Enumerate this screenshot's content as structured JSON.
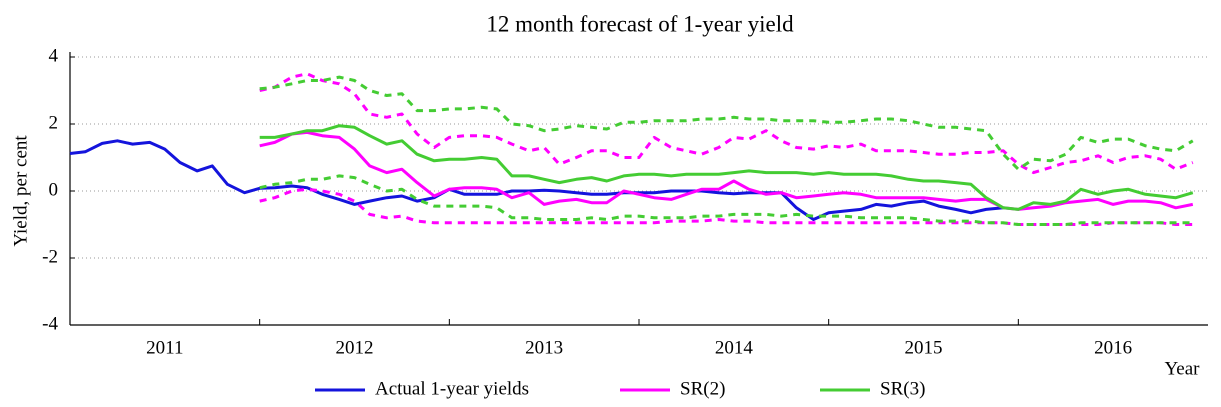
{
  "chart_data": {
    "type": "line",
    "title": "12 month forecast of 1-year yield",
    "y_label": "Yield, per cent",
    "x_label": "Year",
    "xlim": [
      2011,
      2017
    ],
    "xticks": [
      {
        "value": 2011.5,
        "label": "2011"
      },
      {
        "value": 2012.5,
        "label": "2012"
      },
      {
        "value": 2013.5,
        "label": "2013"
      },
      {
        "value": 2014.5,
        "label": "2014"
      },
      {
        "value": 2015.5,
        "label": "2015"
      },
      {
        "value": 2016.5,
        "label": "2016"
      }
    ],
    "xtick_marks": [
      2012,
      2013,
      2014,
      2015,
      2016
    ],
    "ylim": [
      -4,
      4
    ],
    "yticks": [
      -4,
      -2,
      0,
      2,
      4
    ],
    "grid": true,
    "legend": "bottom",
    "x": [
      2011,
      2011.08,
      2011.17,
      2011.25,
      2011.33,
      2011.42,
      2011.5,
      2011.58,
      2011.67,
      2011.75,
      2011.83,
      2011.92,
      2012,
      2012.08,
      2012.17,
      2012.25,
      2012.33,
      2012.42,
      2012.5,
      2012.58,
      2012.67,
      2012.75,
      2012.83,
      2012.92,
      2013,
      2013.08,
      2013.17,
      2013.25,
      2013.33,
      2013.42,
      2013.5,
      2013.58,
      2013.67,
      2013.75,
      2013.83,
      2013.92,
      2014,
      2014.08,
      2014.17,
      2014.25,
      2014.33,
      2014.42,
      2014.5,
      2014.58,
      2014.67,
      2014.75,
      2014.83,
      2014.92,
      2015,
      2015.08,
      2015.17,
      2015.25,
      2015.33,
      2015.42,
      2015.5,
      2015.58,
      2015.67,
      2015.75,
      2015.83,
      2015.92,
      2016,
      2016.08,
      2016.17,
      2016.25,
      2016.33,
      2016.42,
      2016.5,
      2016.58,
      2016.67,
      2016.75,
      2016.83,
      2016.92
    ],
    "series": [
      {
        "name": "Actual 1-year yields",
        "color": "#1414dc",
        "values": [
          1.12,
          1.17,
          1.42,
          1.5,
          1.4,
          1.45,
          1.25,
          0.85,
          0.6,
          0.75,
          0.2,
          -0.05,
          0.08,
          0.1,
          0.15,
          0.1,
          -0.1,
          -0.25,
          -0.4,
          -0.3,
          -0.2,
          -0.15,
          -0.3,
          -0.2,
          0.05,
          -0.1,
          -0.1,
          -0.1,
          0.0,
          0.0,
          0.02,
          0.0,
          -0.05,
          -0.1,
          -0.1,
          -0.05,
          -0.05,
          -0.05,
          0.0,
          0.0,
          0.0,
          -0.05,
          -0.08,
          -0.05,
          -0.05,
          -0.05,
          -0.5,
          -0.85,
          -0.65,
          -0.6,
          -0.55,
          -0.4,
          -0.45,
          -0.35,
          -0.3,
          -0.45,
          -0.55,
          -0.65,
          -0.55,
          -0.5,
          null,
          null,
          null,
          null,
          null,
          null,
          null,
          null,
          null,
          null,
          null,
          null
        ]
      },
      {
        "name": "SR(2)",
        "color": "#ff00ff",
        "values": [
          null,
          null,
          null,
          null,
          null,
          null,
          null,
          null,
          null,
          null,
          null,
          null,
          1.35,
          1.45,
          1.7,
          1.75,
          1.65,
          1.6,
          1.25,
          0.75,
          0.55,
          0.65,
          0.25,
          -0.15,
          0.05,
          0.1,
          0.1,
          0.05,
          -0.2,
          -0.05,
          -0.4,
          -0.3,
          -0.25,
          -0.35,
          -0.35,
          0.0,
          -0.1,
          -0.2,
          -0.25,
          -0.1,
          0.05,
          0.05,
          0.3,
          0.05,
          -0.1,
          -0.05,
          -0.2,
          -0.15,
          -0.1,
          -0.05,
          -0.1,
          -0.2,
          -0.2,
          -0.2,
          -0.2,
          -0.25,
          -0.3,
          -0.25,
          -0.25,
          -0.5,
          -0.55,
          -0.5,
          -0.45,
          -0.35,
          -0.3,
          -0.25,
          -0.4,
          -0.3,
          -0.3,
          -0.35,
          -0.5,
          -0.4
        ],
        "upper": [
          null,
          null,
          null,
          null,
          null,
          null,
          null,
          null,
          null,
          null,
          null,
          null,
          3.0,
          3.1,
          3.4,
          3.5,
          3.3,
          3.2,
          2.9,
          2.3,
          2.2,
          2.3,
          1.7,
          1.3,
          1.6,
          1.65,
          1.65,
          1.6,
          1.4,
          1.2,
          1.3,
          0.8,
          1.0,
          1.2,
          1.2,
          1.0,
          1.0,
          1.6,
          1.3,
          1.2,
          1.1,
          1.3,
          1.6,
          1.55,
          1.8,
          1.5,
          1.3,
          1.25,
          1.35,
          1.3,
          1.4,
          1.2,
          1.2,
          1.2,
          1.15,
          1.1,
          1.1,
          1.15,
          1.15,
          1.2,
          0.8,
          0.55,
          0.7,
          0.85,
          0.9,
          1.05,
          0.85,
          1.0,
          1.05,
          0.95,
          0.65,
          0.85
        ],
        "lower": [
          null,
          null,
          null,
          null,
          null,
          null,
          null,
          null,
          null,
          null,
          null,
          null,
          -0.3,
          -0.2,
          0.0,
          0.05,
          0.0,
          -0.1,
          -0.3,
          -0.7,
          -0.8,
          -0.75,
          -0.9,
          -0.95,
          -0.95,
          -0.95,
          -0.95,
          -0.95,
          -0.95,
          -0.95,
          -0.95,
          -0.95,
          -0.95,
          -0.95,
          -0.95,
          -0.95,
          -0.95,
          -0.95,
          -0.9,
          -0.9,
          -0.9,
          -0.85,
          -0.9,
          -0.9,
          -0.95,
          -0.95,
          -0.95,
          -0.95,
          -0.95,
          -0.95,
          -0.95,
          -0.95,
          -0.95,
          -0.95,
          -0.95,
          -0.95,
          -0.95,
          -0.95,
          -0.95,
          -0.95,
          -1.0,
          -1.0,
          -1.0,
          -1.0,
          -1.0,
          -1.0,
          -0.95,
          -0.95,
          -0.95,
          -0.95,
          -1.0,
          -1.0
        ]
      },
      {
        "name": "SR(3)",
        "color": "#44cc33",
        "values": [
          null,
          null,
          null,
          null,
          null,
          null,
          null,
          null,
          null,
          null,
          null,
          null,
          1.6,
          1.6,
          1.7,
          1.8,
          1.8,
          1.95,
          1.9,
          1.65,
          1.4,
          1.5,
          1.1,
          0.9,
          0.95,
          0.95,
          1.0,
          0.95,
          0.45,
          0.45,
          0.35,
          0.25,
          0.35,
          0.4,
          0.3,
          0.45,
          0.5,
          0.5,
          0.45,
          0.5,
          0.5,
          0.5,
          0.55,
          0.6,
          0.55,
          0.55,
          0.55,
          0.5,
          0.55,
          0.5,
          0.5,
          0.5,
          0.45,
          0.35,
          0.3,
          0.3,
          0.25,
          0.2,
          -0.2,
          -0.5,
          -0.55,
          -0.35,
          -0.4,
          -0.3,
          0.05,
          -0.1,
          0.0,
          0.05,
          -0.1,
          -0.15,
          -0.2,
          -0.05
        ],
        "upper": [
          null,
          null,
          null,
          null,
          null,
          null,
          null,
          null,
          null,
          null,
          null,
          null,
          3.05,
          3.1,
          3.2,
          3.3,
          3.3,
          3.4,
          3.3,
          3.0,
          2.85,
          2.9,
          2.4,
          2.4,
          2.45,
          2.45,
          2.5,
          2.45,
          2.0,
          1.95,
          1.8,
          1.85,
          1.95,
          1.9,
          1.85,
          2.05,
          2.05,
          2.1,
          2.1,
          2.1,
          2.15,
          2.15,
          2.2,
          2.15,
          2.15,
          2.1,
          2.1,
          2.1,
          2.05,
          2.05,
          2.1,
          2.15,
          2.15,
          2.1,
          2.0,
          1.9,
          1.9,
          1.85,
          1.8,
          1.1,
          0.65,
          0.95,
          0.9,
          1.1,
          1.6,
          1.45,
          1.55,
          1.55,
          1.35,
          1.25,
          1.2,
          1.5
        ],
        "lower": [
          null,
          null,
          null,
          null,
          null,
          null,
          null,
          null,
          null,
          null,
          null,
          null,
          0.1,
          0.2,
          0.25,
          0.35,
          0.35,
          0.45,
          0.4,
          0.2,
          0.0,
          0.05,
          -0.25,
          -0.45,
          -0.45,
          -0.45,
          -0.45,
          -0.5,
          -0.8,
          -0.8,
          -0.85,
          -0.85,
          -0.85,
          -0.8,
          -0.85,
          -0.75,
          -0.75,
          -0.8,
          -0.8,
          -0.8,
          -0.75,
          -0.75,
          -0.7,
          -0.7,
          -0.7,
          -0.75,
          -0.7,
          -0.75,
          -0.75,
          -0.75,
          -0.8,
          -0.8,
          -0.8,
          -0.8,
          -0.85,
          -0.9,
          -0.9,
          -0.9,
          -0.95,
          -0.95,
          -1.0,
          -1.0,
          -1.0,
          -1.0,
          -0.95,
          -0.95,
          -0.95,
          -0.95,
          -0.95,
          -0.95,
          -0.95,
          -0.95
        ]
      }
    ]
  }
}
